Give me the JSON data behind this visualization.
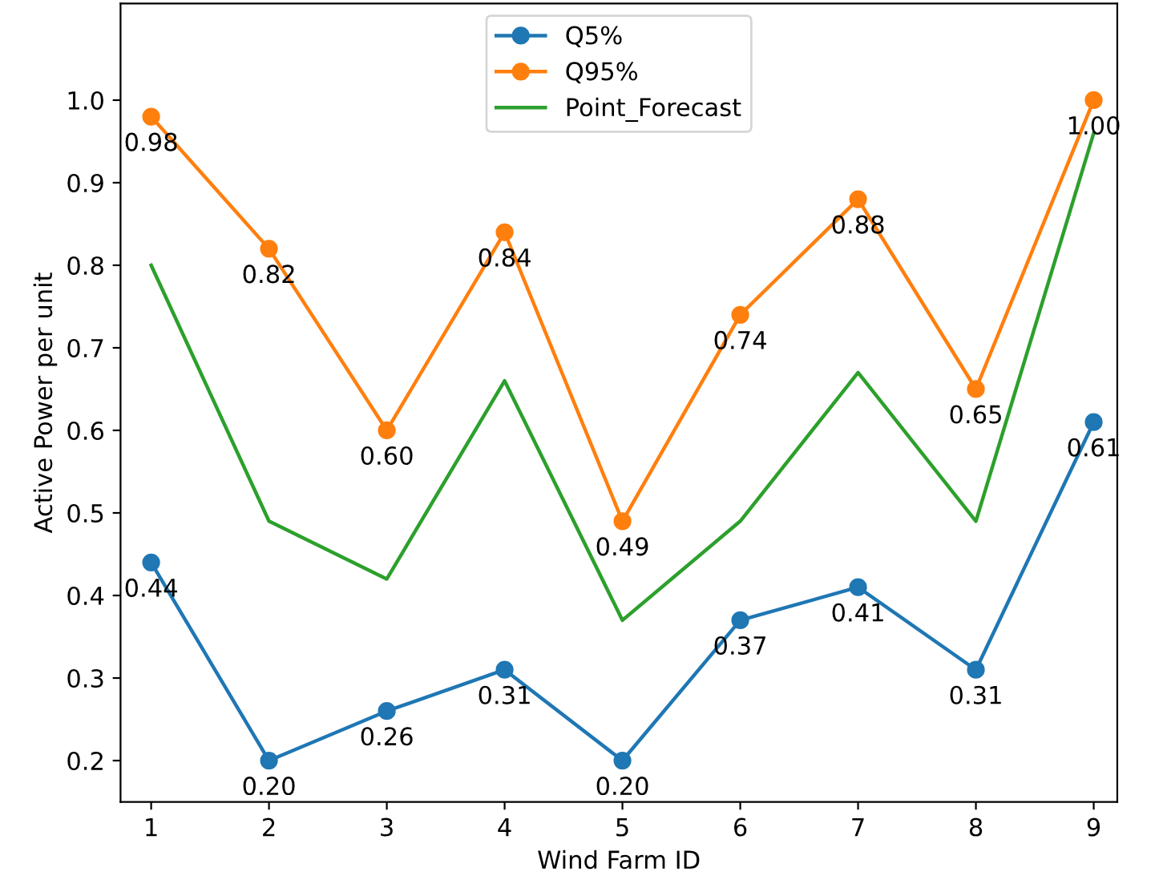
{
  "chart_data": {
    "type": "line",
    "xlabel": "Wind Farm ID",
    "ylabel": "Active Power per unit",
    "x": [
      1,
      2,
      3,
      4,
      5,
      6,
      7,
      8,
      9
    ],
    "series": [
      {
        "name": "Q5%",
        "color": "#1f77b4",
        "marker": "circle",
        "values": [
          0.44,
          0.2,
          0.26,
          0.31,
          0.2,
          0.37,
          0.41,
          0.31,
          0.61
        ],
        "value_labels": [
          "0.44",
          "0.20",
          "0.26",
          "0.31",
          "0.20",
          "0.37",
          "0.41",
          "0.31",
          "0.61"
        ]
      },
      {
        "name": "Q95%",
        "color": "#ff7f0e",
        "marker": "circle",
        "values": [
          0.98,
          0.82,
          0.6,
          0.84,
          0.49,
          0.74,
          0.88,
          0.65,
          1.0
        ],
        "value_labels": [
          "0.98",
          "0.82",
          "0.60",
          "0.84",
          "0.49",
          "0.74",
          "0.88",
          "0.65",
          "1.00"
        ]
      },
      {
        "name": "Point_Forecast",
        "color": "#2ca02c",
        "marker": "none",
        "values": [
          0.8,
          0.49,
          0.42,
          0.66,
          0.37,
          0.49,
          0.67,
          0.49,
          0.96
        ]
      }
    ],
    "xlim": [
      0.74,
      9.2
    ],
    "ylim": [
      0.15,
      1.117
    ],
    "xticks": [
      1,
      2,
      3,
      4,
      5,
      6,
      7,
      8,
      9
    ],
    "yticks": [
      {
        "value": 0.2,
        "label": "0.2"
      },
      {
        "value": 0.3,
        "label": "0.3"
      },
      {
        "value": 0.4,
        "label": "0.4"
      },
      {
        "value": 0.5,
        "label": "0.5"
      },
      {
        "value": 0.6,
        "label": "0.6"
      },
      {
        "value": 0.7,
        "label": "0.7"
      },
      {
        "value": 0.8,
        "label": "0.8"
      },
      {
        "value": 0.9,
        "label": "0.9"
      },
      {
        "value": 1.0,
        "label": "1.0"
      }
    ],
    "legend": "top",
    "grid": false
  }
}
